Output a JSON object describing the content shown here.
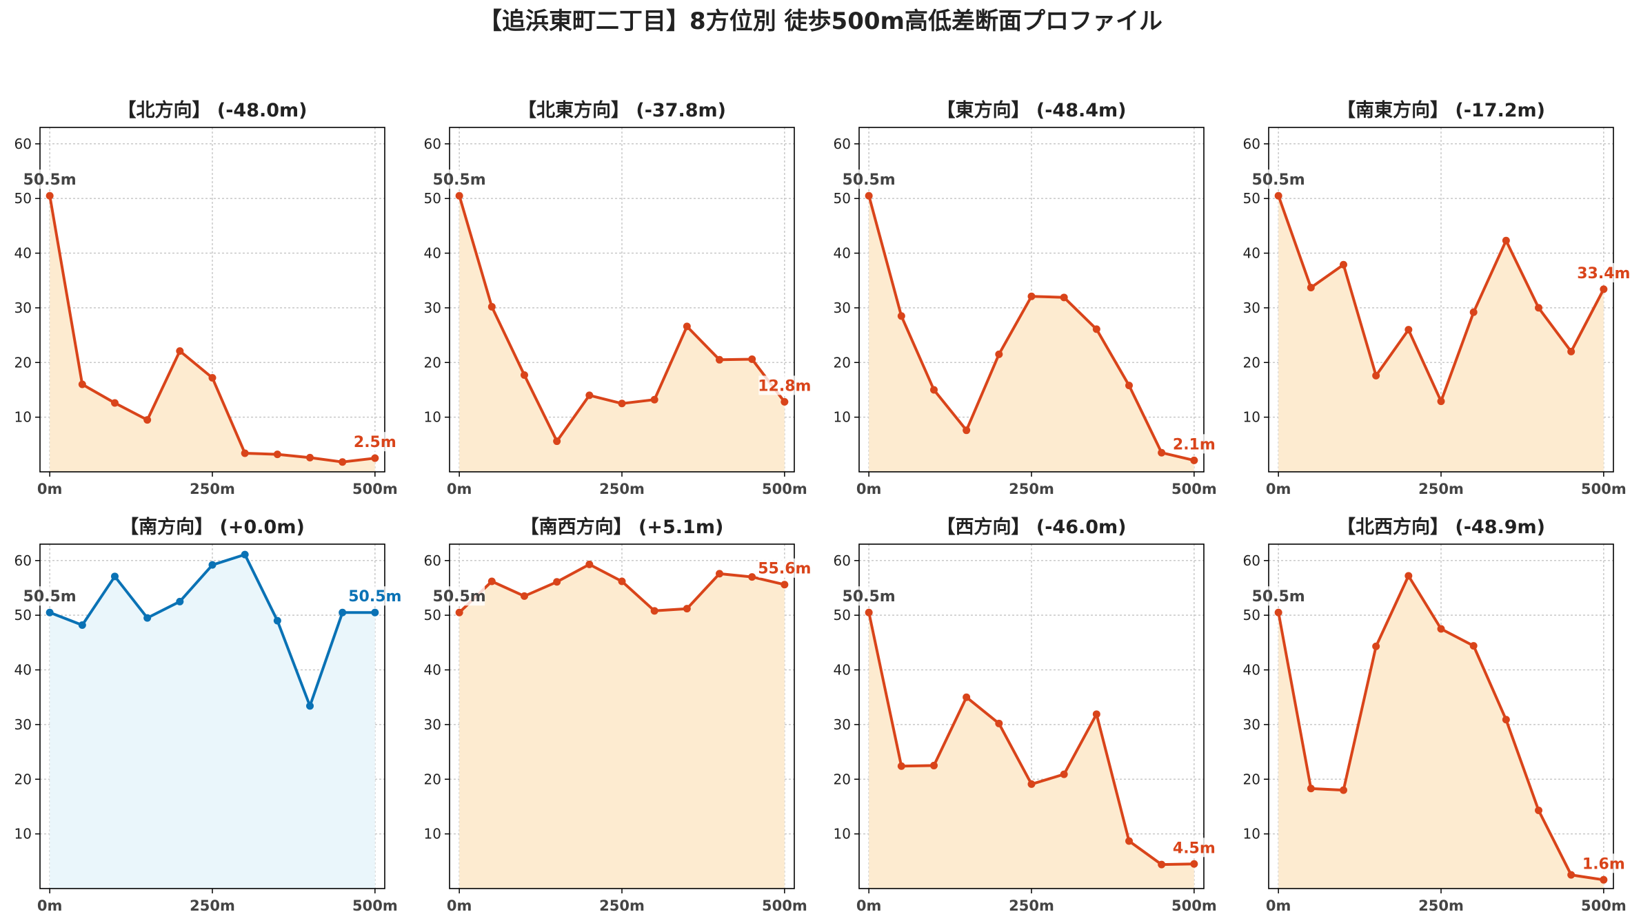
{
  "chart_data": {
    "type": "line",
    "title": "【追浜東町二丁目】8方位別 徒歩500m高低差断面プロファイル",
    "x": [
      0,
      50,
      100,
      150,
      200,
      250,
      300,
      350,
      400,
      450,
      500
    ],
    "x_ticks": [
      "0m",
      "250m",
      "500m"
    ],
    "x_tick_values": [
      0,
      250,
      500
    ],
    "y_ticks": [
      "10",
      "20",
      "30",
      "40",
      "50",
      "60"
    ],
    "y_tick_values": [
      10,
      20,
      30,
      40,
      50,
      60
    ],
    "xlim": [
      -15,
      515
    ],
    "ylim": [
      0,
      63
    ],
    "grid": true,
    "colors": {
      "down": "#d9441a",
      "down_fill": "#fdebd0",
      "flat": "#0a72b5",
      "flat_fill": "#eaf6fb",
      "start_label": "#444444"
    },
    "panels": [
      {
        "title": "【北方向】 (-48.0m)",
        "start_label": "50.5m",
        "end_label": "2.5m",
        "style": "down",
        "values": [
          50.5,
          16.0,
          12.6,
          9.5,
          22.1,
          17.2,
          3.4,
          3.2,
          2.6,
          1.8,
          2.5
        ]
      },
      {
        "title": "【北東方向】 (-37.8m)",
        "start_label": "50.5m",
        "end_label": "12.8m",
        "style": "down",
        "values": [
          50.5,
          30.2,
          17.7,
          5.6,
          14.0,
          12.5,
          13.2,
          26.6,
          20.5,
          20.6,
          12.8
        ]
      },
      {
        "title": "【東方向】 (-48.4m)",
        "start_label": "50.5m",
        "end_label": "2.1m",
        "style": "down",
        "values": [
          50.5,
          28.5,
          15.0,
          7.6,
          21.5,
          32.1,
          31.9,
          26.1,
          15.8,
          3.5,
          2.1
        ]
      },
      {
        "title": "【南東方向】 (-17.2m)",
        "start_label": "50.5m",
        "end_label": "33.4m",
        "style": "down",
        "values": [
          50.5,
          33.7,
          37.9,
          17.6,
          26.0,
          12.9,
          29.2,
          42.3,
          30.0,
          22.0,
          33.4
        ]
      },
      {
        "title": "【南方向】 (+0.0m)",
        "start_label": "50.5m",
        "end_label": "50.5m",
        "style": "flat",
        "values": [
          50.5,
          48.2,
          57.1,
          49.5,
          52.5,
          59.2,
          61.1,
          49.0,
          33.4,
          50.5,
          50.5
        ]
      },
      {
        "title": "【南西方向】 (+5.1m)",
        "start_label": "50.5m",
        "end_label": "55.6m",
        "style": "down",
        "values": [
          50.5,
          56.2,
          53.5,
          56.1,
          59.3,
          56.2,
          50.8,
          51.2,
          57.6,
          57.0,
          55.6
        ]
      },
      {
        "title": "【西方向】 (-46.0m)",
        "start_label": "50.5m",
        "end_label": "4.5m",
        "style": "down",
        "values": [
          50.5,
          22.4,
          22.5,
          35.0,
          30.2,
          19.1,
          20.9,
          31.9,
          8.7,
          4.4,
          4.5
        ]
      },
      {
        "title": "【北西方向】 (-48.9m)",
        "start_label": "50.5m",
        "end_label": "1.6m",
        "style": "down",
        "values": [
          50.5,
          18.3,
          18.0,
          44.3,
          57.2,
          47.5,
          44.4,
          30.9,
          14.3,
          2.5,
          1.6
        ]
      }
    ]
  }
}
